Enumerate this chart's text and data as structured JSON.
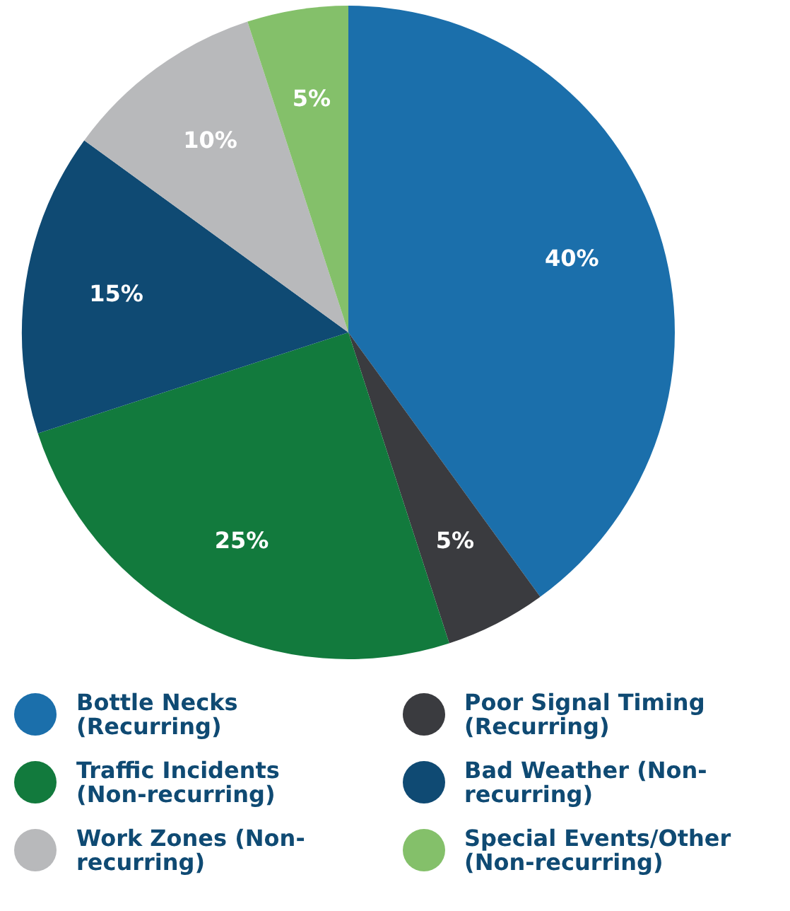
{
  "chart_data": {
    "type": "pie",
    "categories": [
      "Bottle Necks (Recurring)",
      "Poor Signal Timing (Recurring)",
      "Traffic Incidents (Non-recurring)",
      "Bad Weather (Non-recurring)",
      "Work Zones (Non-recurring)",
      "Special Events/Other (Non-recurring)"
    ],
    "values": [
      40,
      5,
      25,
      15,
      10,
      5
    ],
    "value_labels": [
      "40%",
      "5%",
      "25%",
      "15%",
      "10%",
      "5%"
    ],
    "colors": [
      "#1b6fab",
      "#3a3b3f",
      "#127a3d",
      "#0f4a73",
      "#b8b9bb",
      "#84c06a"
    ],
    "legend": "bottom"
  }
}
